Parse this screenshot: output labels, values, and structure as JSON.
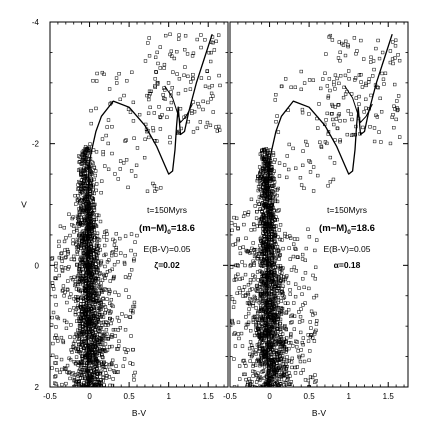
{
  "chart_data": [
    {
      "type": "scatter",
      "xlabel": "B-V",
      "ylabel": "V",
      "xlim": [
        -0.5,
        1.75
      ],
      "ylim": [
        2,
        -4
      ],
      "y_inverted": true,
      "x_ticks": [
        "-0.5",
        "0",
        "0.5",
        "1",
        "1.5"
      ],
      "y_ticks": [
        "-4",
        "-2",
        "0",
        "2"
      ],
      "annotations": [
        "t=150Myrs",
        "(m−M)₀=18.6",
        "E(B-V)=0.05",
        "ζ=0.02"
      ],
      "annotation_lines": [
        {
          "text": "t=150Myrs",
          "bold": false
        },
        {
          "text": "(m−M)",
          "sub": "0",
          "tail": "=18.6",
          "bold": true
        },
        {
          "text": "E(B-V)=0.05",
          "bold": false
        },
        {
          "text": "ζ=0.02",
          "bold": true
        }
      ],
      "series": [
        {
          "marker": "open-square",
          "role": "observed stars"
        },
        {
          "marker": "line",
          "role": "isochrone",
          "x": [
            -0.02,
            -0.03,
            -0.03,
            -0.02,
            -0.01,
            0.02,
            0.08,
            0.15,
            0.3,
            0.5,
            0.7,
            0.85,
            0.95,
            1.0,
            1.05,
            1.08,
            1.1,
            1.12,
            1.15,
            1.2,
            1.25,
            1.3,
            1.35,
            1.45,
            1.55
          ],
          "y": [
            2.0,
            1.0,
            0.0,
            -1.0,
            -1.6,
            -1.85,
            -2.2,
            -2.45,
            -2.7,
            -2.6,
            -2.3,
            -1.95,
            -1.65,
            -1.5,
            -1.55,
            -1.9,
            -2.3,
            -2.6,
            -2.15,
            -2.2,
            -2.5,
            -2.75,
            -3.0,
            -3.4,
            -3.8
          ]
        }
      ]
    },
    {
      "type": "scatter",
      "xlabel": "B-V",
      "ylabel": "",
      "xlim": [
        -0.5,
        1.75
      ],
      "ylim": [
        2,
        -4
      ],
      "y_inverted": true,
      "x_ticks": [
        "-0.5",
        "0",
        "0.5",
        "1",
        "1.5"
      ],
      "y_ticks": [],
      "annotations": [
        "t=150Myrs",
        "(m−M)₀=18.6",
        "E(B-V)=0.05",
        "α=0.18"
      ],
      "annotation_lines": [
        {
          "text": "t=150Myrs",
          "bold": false
        },
        {
          "text": "(m−M)",
          "sub": "0",
          "tail": "=18.6",
          "bold": true
        },
        {
          "text": "E(B-V)=0.05",
          "bold": false
        },
        {
          "text": "α=0.18",
          "bold": true
        }
      ],
      "series": [
        {
          "marker": "open-square",
          "role": "observed stars"
        },
        {
          "marker": "line",
          "role": "isochrone",
          "x": [
            -0.02,
            -0.03,
            -0.03,
            -0.02,
            -0.01,
            0.02,
            0.08,
            0.15,
            0.3,
            0.5,
            0.7,
            0.85,
            0.95,
            1.0,
            1.05,
            1.08,
            1.1,
            1.12,
            1.15,
            1.2,
            1.25,
            1.3,
            1.35,
            1.45,
            1.55
          ],
          "y": [
            2.0,
            1.0,
            0.0,
            -1.0,
            -1.6,
            -1.85,
            -2.2,
            -2.45,
            -2.7,
            -2.6,
            -2.3,
            -1.95,
            -1.65,
            -1.5,
            -1.55,
            -1.9,
            -2.3,
            -2.6,
            -2.15,
            -2.2,
            -2.5,
            -2.75,
            -3.0,
            -3.4,
            -3.8
          ]
        }
      ]
    }
  ]
}
